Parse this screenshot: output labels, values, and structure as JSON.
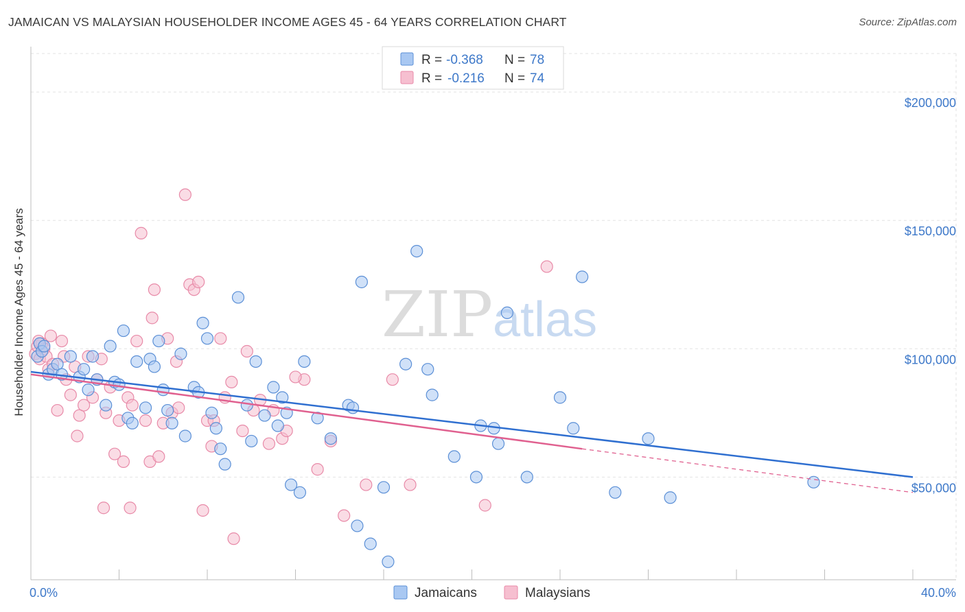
{
  "header": {
    "title": "JAMAICAN VS MALAYSIAN HOUSEHOLDER INCOME AGES 45 - 64 YEARS CORRELATION CHART",
    "source": "Source: ZipAtlas.com"
  },
  "colors": {
    "jamaicans_fill": "#a9c8f2",
    "jamaicans_stroke": "#5b8fd6",
    "jamaicans_line": "#2f6fd0",
    "malaysians_fill": "#f6bfd0",
    "malaysians_stroke": "#e88aa8",
    "malaysians_line": "#e0608f",
    "tick_text": "#3d78c9",
    "grid": "#e2e2e2"
  },
  "legend": {
    "rows": [
      {
        "r_label": "R =",
        "r_value": "-0.368",
        "n_label": "N =",
        "n_value": "78"
      },
      {
        "r_label": "R =",
        "r_value": "-0.216",
        "n_label": "N =",
        "n_value": "74"
      }
    ]
  },
  "watermark": {
    "zip": "ZIP",
    "atlas": "atlas"
  },
  "chart_data": {
    "type": "scatter",
    "xlabel": "",
    "ylabel": "Householder Income Ages 45 - 64 years",
    "xlim": [
      0,
      40
    ],
    "ylim": [
      10000,
      215000
    ],
    "x_tick_labels": {
      "left": "0.0%",
      "right": "40.0%"
    },
    "y_ticks": [
      {
        "value": 50000,
        "label": "$50,000"
      },
      {
        "value": 100000,
        "label": "$100,000"
      },
      {
        "value": 150000,
        "label": "$150,000"
      },
      {
        "value": 200000,
        "label": "$200,000"
      }
    ],
    "grid": true,
    "legend_position": "top-center",
    "series": [
      {
        "name": "Jamaicans",
        "r": -0.368,
        "n": 78,
        "trend": {
          "x0": 0,
          "y0": 91000,
          "x1": 40,
          "y1": 50000
        },
        "points": [
          [
            0.3,
            97000
          ],
          [
            0.4,
            102000
          ],
          [
            0.5,
            99000
          ],
          [
            0.8,
            90000
          ],
          [
            1.0,
            92000
          ],
          [
            1.2,
            94000
          ],
          [
            1.4,
            90000
          ],
          [
            1.8,
            97000
          ],
          [
            2.2,
            89000
          ],
          [
            2.4,
            92000
          ],
          [
            2.6,
            84000
          ],
          [
            2.8,
            97000
          ],
          [
            3.0,
            88000
          ],
          [
            3.4,
            78000
          ],
          [
            3.6,
            101000
          ],
          [
            3.8,
            87000
          ],
          [
            4.0,
            86000
          ],
          [
            4.2,
            107000
          ],
          [
            4.4,
            73000
          ],
          [
            4.6,
            71000
          ],
          [
            4.8,
            95000
          ],
          [
            5.2,
            77000
          ],
          [
            5.4,
            96000
          ],
          [
            5.6,
            93000
          ],
          [
            5.8,
            103000
          ],
          [
            6.0,
            84000
          ],
          [
            6.2,
            76000
          ],
          [
            6.4,
            71000
          ],
          [
            6.8,
            98000
          ],
          [
            7.0,
            66000
          ],
          [
            7.4,
            85000
          ],
          [
            7.6,
            83000
          ],
          [
            7.8,
            110000
          ],
          [
            8.0,
            104000
          ],
          [
            8.2,
            75000
          ],
          [
            8.4,
            69000
          ],
          [
            8.6,
            61000
          ],
          [
            8.8,
            55000
          ],
          [
            9.4,
            120000
          ],
          [
            9.8,
            78000
          ],
          [
            10.0,
            64000
          ],
          [
            10.2,
            95000
          ],
          [
            10.6,
            74000
          ],
          [
            11.0,
            85000
          ],
          [
            11.2,
            70000
          ],
          [
            11.4,
            81000
          ],
          [
            11.6,
            75000
          ],
          [
            11.8,
            47000
          ],
          [
            12.2,
            44000
          ],
          [
            12.4,
            95000
          ],
          [
            13.0,
            73000
          ],
          [
            13.6,
            65000
          ],
          [
            14.4,
            78000
          ],
          [
            14.6,
            77000
          ],
          [
            14.8,
            31000
          ],
          [
            15.0,
            126000
          ],
          [
            15.4,
            24000
          ],
          [
            16.0,
            46000
          ],
          [
            16.2,
            17000
          ],
          [
            17.0,
            94000
          ],
          [
            17.5,
            138000
          ],
          [
            18.0,
            92000
          ],
          [
            18.2,
            82000
          ],
          [
            19.2,
            58000
          ],
          [
            20.2,
            50000
          ],
          [
            20.4,
            70000
          ],
          [
            21.0,
            69000
          ],
          [
            21.2,
            63000
          ],
          [
            21.6,
            114000
          ],
          [
            22.5,
            50000
          ],
          [
            24.0,
            81000
          ],
          [
            24.6,
            69000
          ],
          [
            25.0,
            128000
          ],
          [
            26.5,
            44000
          ],
          [
            28.0,
            65000
          ],
          [
            29.0,
            42000
          ],
          [
            35.5,
            48000
          ],
          [
            0.6,
            101000
          ]
        ]
      },
      {
        "name": "Malaysians",
        "r": -0.216,
        "n": 74,
        "trend": {
          "x0": 0,
          "y0": 90000,
          "x1": 25,
          "y1": 61000,
          "dash_x1": 40,
          "dash_y1": 44000
        },
        "points": [
          [
            0.2,
            98000
          ],
          [
            0.3,
            101000
          ],
          [
            0.4,
            96000
          ],
          [
            0.5,
            102000
          ],
          [
            0.6,
            100000
          ],
          [
            0.7,
            97000
          ],
          [
            0.8,
            92000
          ],
          [
            1.0,
            94000
          ],
          [
            1.2,
            76000
          ],
          [
            1.4,
            103000
          ],
          [
            1.6,
            88000
          ],
          [
            1.8,
            82000
          ],
          [
            2.0,
            93000
          ],
          [
            2.2,
            74000
          ],
          [
            2.4,
            78000
          ],
          [
            2.6,
            97000
          ],
          [
            2.8,
            81000
          ],
          [
            3.0,
            88000
          ],
          [
            3.2,
            96000
          ],
          [
            3.4,
            75000
          ],
          [
            3.6,
            85000
          ],
          [
            3.8,
            59000
          ],
          [
            4.0,
            72000
          ],
          [
            4.2,
            56000
          ],
          [
            4.4,
            81000
          ],
          [
            4.6,
            78000
          ],
          [
            4.8,
            103000
          ],
          [
            5.0,
            145000
          ],
          [
            5.2,
            72000
          ],
          [
            5.4,
            56000
          ],
          [
            5.6,
            123000
          ],
          [
            5.8,
            58000
          ],
          [
            6.0,
            71000
          ],
          [
            6.2,
            104000
          ],
          [
            6.4,
            75000
          ],
          [
            6.6,
            95000
          ],
          [
            7.0,
            160000
          ],
          [
            7.2,
            125000
          ],
          [
            7.4,
            123000
          ],
          [
            7.6,
            126000
          ],
          [
            7.8,
            37000
          ],
          [
            8.0,
            72000
          ],
          [
            8.2,
            62000
          ],
          [
            8.6,
            104000
          ],
          [
            8.8,
            81000
          ],
          [
            9.2,
            26000
          ],
          [
            9.6,
            68000
          ],
          [
            9.8,
            99000
          ],
          [
            10.4,
            80000
          ],
          [
            10.8,
            63000
          ],
          [
            11.0,
            76000
          ],
          [
            11.4,
            65000
          ],
          [
            11.6,
            68000
          ],
          [
            12.4,
            88000
          ],
          [
            13.0,
            53000
          ],
          [
            13.6,
            64000
          ],
          [
            14.2,
            35000
          ],
          [
            15.2,
            47000
          ],
          [
            16.4,
            88000
          ],
          [
            17.2,
            47000
          ],
          [
            20.6,
            39000
          ],
          [
            23.4,
            132000
          ],
          [
            3.3,
            38000
          ],
          [
            4.5,
            38000
          ],
          [
            2.1,
            66000
          ],
          [
            1.5,
            97000
          ],
          [
            0.9,
            105000
          ],
          [
            6.7,
            77000
          ],
          [
            5.5,
            112000
          ],
          [
            10.1,
            76000
          ],
          [
            8.3,
            72000
          ],
          [
            12.0,
            89000
          ],
          [
            0.35,
            103000
          ],
          [
            9.1,
            87000
          ]
        ]
      }
    ]
  }
}
